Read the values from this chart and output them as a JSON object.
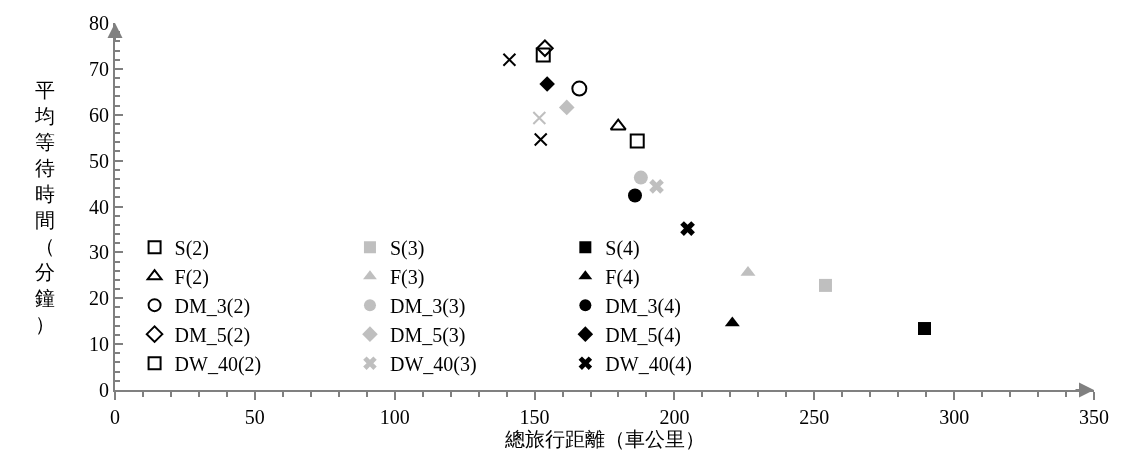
{
  "chart_data": {
    "type": "scatter",
    "xlabel": "總旅行距離（車公里）",
    "ylabel": "平均等待時間（分鐘）",
    "xlim": [
      0,
      350
    ],
    "xticks": [
      0,
      50,
      100,
      150,
      200,
      250,
      300,
      350
    ],
    "ylim": [
      0,
      80
    ],
    "yticks": [
      0,
      10,
      20,
      30,
      40,
      50,
      60,
      70,
      80
    ],
    "legend": "bottom left",
    "series": [
      {
        "name": "S(2)",
        "color": "#000000",
        "marker": "square",
        "x": [
          186.7
        ],
        "values": [
          54.3
        ]
      },
      {
        "name": "F(2)",
        "color": "#000000",
        "marker": "triangle",
        "x": [
          179.9
        ],
        "values": [
          57.5
        ]
      },
      {
        "name": "DM_3(2)",
        "color": "#000000",
        "marker": "circle",
        "x": [
          166
        ],
        "values": [
          65.7
        ]
      },
      {
        "name": "DM_5(2)",
        "color": "#000000",
        "marker": "diamond",
        "x": [
          153.7
        ],
        "values": [
          74.5
        ]
      },
      {
        "name": "DW_40(2)",
        "color": "#000000",
        "marker": "square",
        "x": [
          153.1
        ],
        "values": [
          73
        ]
      },
      {
        "name": "S(3)",
        "color": "#bfbfbf",
        "marker": "square",
        "x": [
          254
        ],
        "values": [
          22.8
        ]
      },
      {
        "name": "F(3)",
        "color": "#bfbfbf",
        "marker": "triangle",
        "x": [
          226.3
        ],
        "values": [
          25.6
        ]
      },
      {
        "name": "DM_3(3)",
        "color": "#bfbfbf",
        "marker": "circle",
        "x": [
          188
        ],
        "values": [
          46.3
        ]
      },
      {
        "name": "DM_5(3)",
        "color": "#bfbfbf",
        "marker": "diamond",
        "x": [
          161.5
        ],
        "values": [
          61.6
        ]
      },
      {
        "name": "DW_40(3)",
        "color": "#bfbfbf",
        "marker": "cross",
        "x": [
          193.6
        ],
        "values": [
          44.4
        ]
      },
      {
        "name": "S(4)",
        "color": "#000000",
        "marker": "square",
        "x": [
          289.4
        ],
        "values": [
          13.4
        ]
      },
      {
        "name": "F(4)",
        "color": "#000000",
        "marker": "triangle",
        "x": [
          220.7
        ],
        "values": [
          14.6
        ]
      },
      {
        "name": "DM_3(4)",
        "color": "#000000",
        "marker": "circle",
        "x": [
          185.9
        ],
        "values": [
          42.4
        ]
      },
      {
        "name": "DM_5(4)",
        "color": "#000000",
        "marker": "diamond",
        "x": [
          154.5
        ],
        "values": [
          66.7
        ]
      },
      {
        "name": "DW_40(4)",
        "color": "#000000",
        "marker": "cross",
        "x": [
          204.7
        ],
        "values": [
          35.2
        ]
      },
      {
        "color": "#000000",
        "marker": "cross",
        "x": [
          141
        ],
        "values": [
          72
        ]
      },
      {
        "color": "#bfbfbf",
        "marker": "cross",
        "x": [
          151.7
        ],
        "values": [
          59.3
        ]
      },
      {
        "color": "#000000",
        "marker": "cross",
        "x": [
          152.2
        ],
        "values": [
          54.6
        ]
      }
    ]
  }
}
